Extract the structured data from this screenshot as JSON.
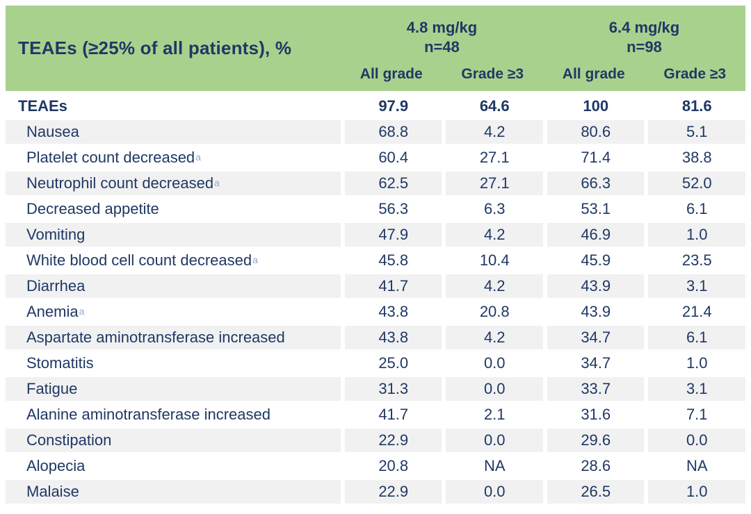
{
  "colors": {
    "header_green": "#a9d18e",
    "text_navy": "#1f3864",
    "stripe_gray": "#f1f1f2",
    "superscript_gray_blue": "#93a9c4"
  },
  "table": {
    "title": "TEAEs (≥25% of all patients), %",
    "groups": [
      {
        "dose": "4.8 mg/kg",
        "n": "n=48"
      },
      {
        "dose": "6.4 mg/kg",
        "n": "n=98"
      }
    ],
    "subheaders": [
      "All grade",
      "Grade ≥3",
      "All grade",
      "Grade ≥3"
    ],
    "footnote_marker": "a",
    "rows": [
      {
        "label": "TEAEs",
        "bold": true,
        "values": [
          "97.9",
          "64.6",
          "100",
          "81.6"
        ]
      },
      {
        "label": "Nausea",
        "values": [
          "68.8",
          "4.2",
          "80.6",
          "5.1"
        ]
      },
      {
        "label": "Platelet count decreased",
        "sup": "a",
        "values": [
          "60.4",
          "27.1",
          "71.4",
          "38.8"
        ]
      },
      {
        "label": "Neutrophil count decreased",
        "sup": "a",
        "values": [
          "62.5",
          "27.1",
          "66.3",
          "52.0"
        ]
      },
      {
        "label": "Decreased appetite",
        "values": [
          "56.3",
          "6.3",
          "53.1",
          "6.1"
        ]
      },
      {
        "label": "Vomiting",
        "values": [
          "47.9",
          "4.2",
          "46.9",
          "1.0"
        ]
      },
      {
        "label": "White blood cell count decreased",
        "sup": "a",
        "values": [
          "45.8",
          "10.4",
          "45.9",
          "23.5"
        ]
      },
      {
        "label": "Diarrhea",
        "values": [
          "41.7",
          "4.2",
          "43.9",
          "3.1"
        ]
      },
      {
        "label": "Anemia",
        "sup": "a",
        "values": [
          "43.8",
          "20.8",
          "43.9",
          "21.4"
        ]
      },
      {
        "label": "Aspartate aminotransferase increased",
        "values": [
          "43.8",
          "4.2",
          "34.7",
          "6.1"
        ]
      },
      {
        "label": "Stomatitis",
        "values": [
          "25.0",
          "0.0",
          "34.7",
          "1.0"
        ]
      },
      {
        "label": "Fatigue",
        "values": [
          "31.3",
          "0.0",
          "33.7",
          "3.1"
        ]
      },
      {
        "label": "Alanine aminotransferase increased",
        "values": [
          "41.7",
          "2.1",
          "31.6",
          "7.1"
        ]
      },
      {
        "label": "Constipation",
        "values": [
          "22.9",
          "0.0",
          "29.6",
          "0.0"
        ]
      },
      {
        "label": "Alopecia",
        "values": [
          "20.8",
          "NA",
          "28.6",
          "NA"
        ]
      },
      {
        "label": "Malaise",
        "values": [
          "22.9",
          "0.0",
          "26.5",
          "1.0"
        ]
      }
    ]
  },
  "chart_data": {
    "type": "table",
    "title": "TEAEs (≥25% of all patients), %",
    "column_groups": [
      "4.8 mg/kg n=48",
      "6.4 mg/kg n=98"
    ],
    "columns": [
      "All grade",
      "Grade ≥3",
      "All grade",
      "Grade ≥3"
    ],
    "categories": [
      "TEAEs",
      "Nausea",
      "Platelet count decreased",
      "Neutrophil count decreased",
      "Decreased appetite",
      "Vomiting",
      "White blood cell count decreased",
      "Diarrhea",
      "Anemia",
      "Aspartate aminotransferase increased",
      "Stomatitis",
      "Fatigue",
      "Alanine aminotransferase increased",
      "Constipation",
      "Alopecia",
      "Malaise"
    ],
    "series": [
      {
        "name": "4.8 mg/kg All grade",
        "values": [
          97.9,
          68.8,
          60.4,
          62.5,
          56.3,
          47.9,
          45.8,
          41.7,
          43.8,
          43.8,
          25.0,
          31.3,
          41.7,
          22.9,
          20.8,
          22.9
        ]
      },
      {
        "name": "4.8 mg/kg Grade >=3",
        "values": [
          64.6,
          4.2,
          27.1,
          27.1,
          6.3,
          4.2,
          10.4,
          4.2,
          20.8,
          4.2,
          0.0,
          0.0,
          2.1,
          0.0,
          null,
          0.0
        ]
      },
      {
        "name": "6.4 mg/kg All grade",
        "values": [
          100,
          80.6,
          71.4,
          66.3,
          53.1,
          46.9,
          45.9,
          43.9,
          43.9,
          34.7,
          34.7,
          33.7,
          31.6,
          29.6,
          28.6,
          26.5
        ]
      },
      {
        "name": "6.4 mg/kg Grade >=3",
        "values": [
          81.6,
          5.1,
          38.8,
          52.0,
          6.1,
          1.0,
          23.5,
          3.1,
          21.4,
          6.1,
          1.0,
          3.1,
          7.1,
          0.0,
          null,
          1.0
        ]
      }
    ],
    "notes": "null values shown as NA in table; rows with footnote marker 'a': Platelet count decreased, Neutrophil count decreased, White blood cell count decreased, Anemia"
  }
}
